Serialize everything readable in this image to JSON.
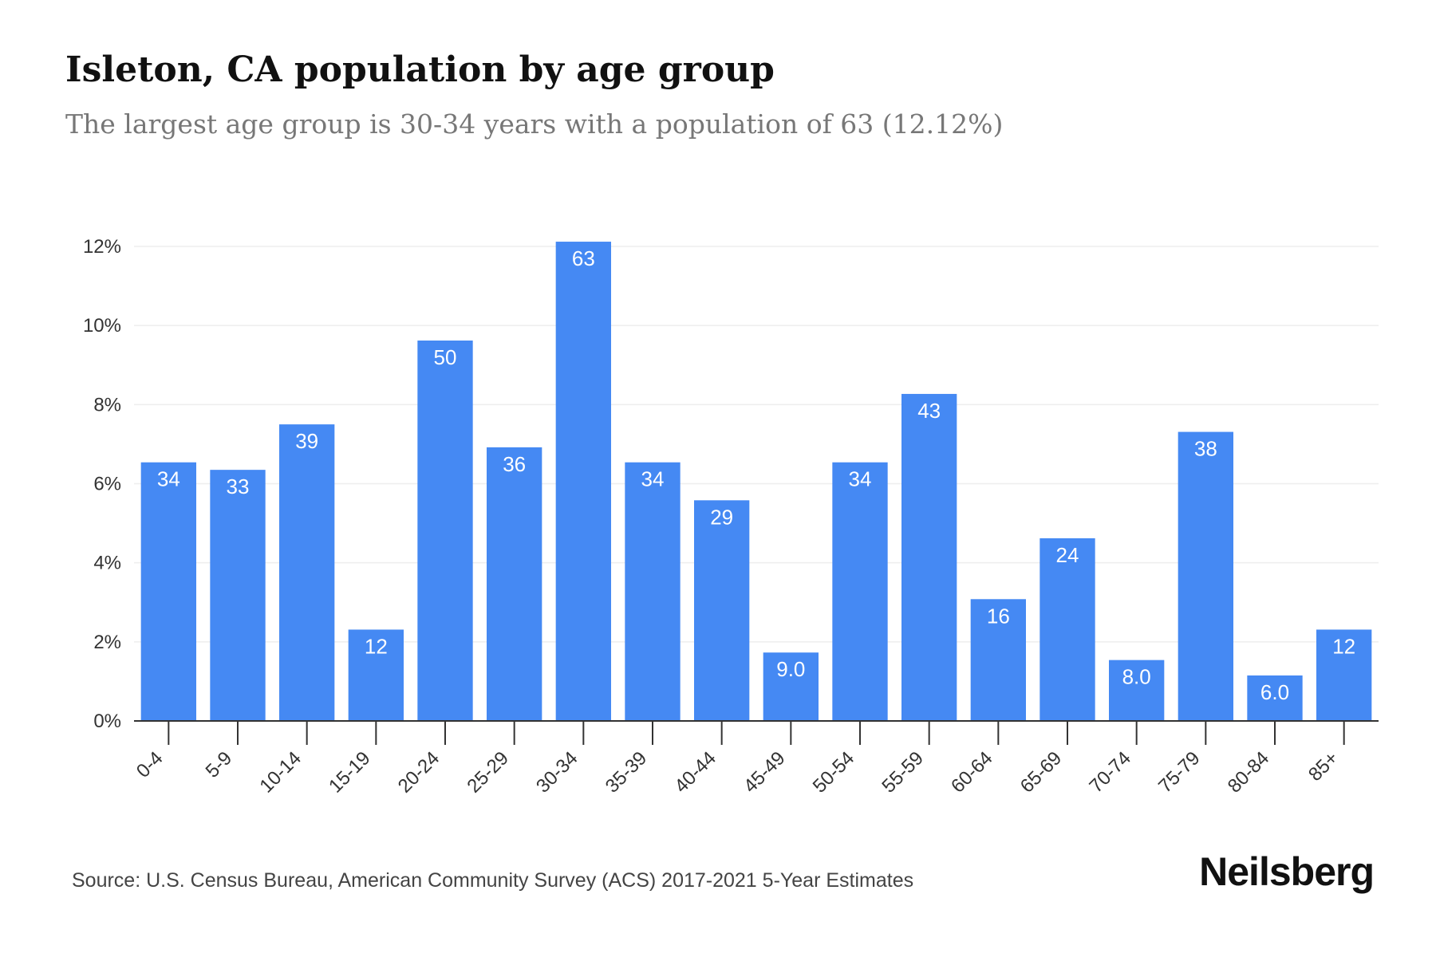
{
  "header": {
    "title": "Isleton, CA population by age group",
    "subtitle": "The largest age group is 30-34 years with a population of 63 (12.12%)"
  },
  "footer": {
    "source": "Source: U.S. Census Bureau, American Community Survey (ACS) 2017-2021 5-Year Estimates",
    "brand": "Neilsberg"
  },
  "colors": {
    "bar": "#4589f3",
    "grid": "#eeeeee",
    "axis": "#333333"
  },
  "chart_data": {
    "type": "bar",
    "title": "Isleton, CA population by age group",
    "subtitle": "The largest age group is 30-34 years with a population of 63 (12.12%)",
    "xlabel": "",
    "ylabel": "",
    "ylim": [
      0,
      12
    ],
    "yticks": [
      "0%",
      "2%",
      "4%",
      "6%",
      "8%",
      "10%",
      "12%"
    ],
    "grid": true,
    "categories": [
      "0-4",
      "5-9",
      "10-14",
      "15-19",
      "20-24",
      "25-29",
      "30-34",
      "35-39",
      "40-44",
      "45-49",
      "50-54",
      "55-59",
      "60-64",
      "65-69",
      "70-74",
      "75-79",
      "80-84",
      "85+"
    ],
    "values": [
      6.54,
      6.35,
      7.5,
      2.31,
      9.62,
      6.92,
      12.12,
      6.54,
      5.58,
      1.73,
      6.54,
      8.27,
      3.08,
      4.62,
      1.54,
      7.31,
      1.15,
      2.31
    ],
    "data_labels": [
      "34",
      "33",
      "39",
      "12",
      "50",
      "36",
      "63",
      "34",
      "29",
      "9.0",
      "34",
      "43",
      "16",
      "24",
      "8.0",
      "38",
      "6.0",
      "12"
    ]
  }
}
